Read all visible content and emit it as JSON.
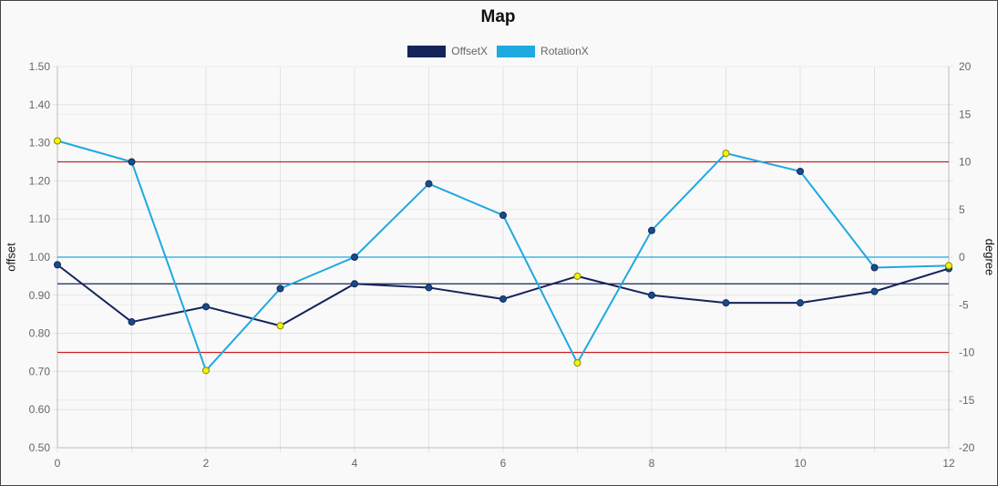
{
  "chart_data": {
    "type": "line",
    "title": "Map",
    "xlabel": "",
    "ylabel_left": "offset",
    "ylabel_right": "degree",
    "x": [
      0,
      1,
      2,
      3,
      4,
      5,
      6,
      7,
      8,
      9,
      10,
      11,
      12
    ],
    "xlim": [
      0,
      12
    ],
    "x_ticks": [
      "0",
      "2",
      "4",
      "6",
      "8",
      "10",
      "12"
    ],
    "ylim_left": [
      0.5,
      1.5
    ],
    "y_ticks_left": [
      "0.50",
      "0.60",
      "0.70",
      "0.80",
      "0.90",
      "1.00",
      "1.10",
      "1.20",
      "1.30",
      "1.40",
      "1.50"
    ],
    "ylim_right": [
      -20,
      20
    ],
    "y_ticks_right": [
      "-20",
      "-15",
      "-10",
      "-5",
      "0",
      "5",
      "10",
      "15",
      "20"
    ],
    "grid": true,
    "legend_position": "top",
    "series": [
      {
        "name": "OffsetX",
        "axis": "left",
        "color": "#14245a",
        "values": [
          0.98,
          0.83,
          0.87,
          0.82,
          0.93,
          0.92,
          0.89,
          0.95,
          0.9,
          0.88,
          0.88,
          0.91,
          0.97
        ],
        "highlighted_points": [
          3,
          7
        ]
      },
      {
        "name": "RotationX",
        "axis": "right",
        "color": "#1ea9e1",
        "values": [
          12.2,
          10.0,
          -11.9,
          -3.3,
          0.0,
          7.7,
          4.4,
          -11.1,
          2.8,
          10.9,
          9.0,
          -1.1,
          -0.9
        ],
        "highlighted_points": [
          0,
          2,
          7,
          9,
          12
        ]
      }
    ],
    "reference_lines": [
      {
        "axis": "left",
        "value": 1.25,
        "color": "#cc2222"
      },
      {
        "axis": "left",
        "value": 0.75,
        "color": "#cc2222"
      },
      {
        "axis": "right",
        "value": 0,
        "color": "#1ea9e1"
      },
      {
        "axis": "left",
        "value": 0.93,
        "color": "#14245a"
      }
    ],
    "marker_color_default": "#1a4a8a",
    "marker_color_highlight": "#f5f500"
  }
}
